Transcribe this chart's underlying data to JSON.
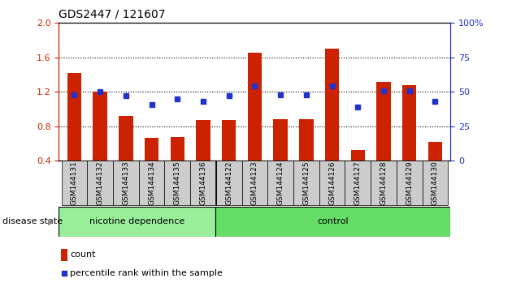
{
  "title": "GDS2447 / 121607",
  "samples": [
    "GSM144131",
    "GSM144132",
    "GSM144133",
    "GSM144134",
    "GSM144135",
    "GSM144136",
    "GSM144122",
    "GSM144123",
    "GSM144124",
    "GSM144125",
    "GSM144126",
    "GSM144127",
    "GSM144128",
    "GSM144129",
    "GSM144130"
  ],
  "bar_values": [
    1.42,
    1.2,
    0.92,
    0.67,
    0.68,
    0.87,
    0.87,
    1.65,
    0.88,
    0.88,
    1.7,
    0.52,
    1.32,
    1.28,
    0.62
  ],
  "dot_pct": [
    48,
    50,
    47,
    41,
    45,
    43,
    47,
    54,
    48,
    48,
    54,
    39,
    51,
    51,
    43
  ],
  "bar_color": "#cc2200",
  "dot_color": "#2233cc",
  "ylim_left": [
    0.4,
    2.0
  ],
  "ylim_right": [
    0,
    100
  ],
  "yticks_left": [
    0.4,
    0.8,
    1.2,
    1.6,
    2.0
  ],
  "yticks_right": [
    0,
    25,
    50,
    75,
    100
  ],
  "group1_label": "nicotine dependence",
  "group2_label": "control",
  "group1_count": 6,
  "group2_count": 9,
  "legend_count_label": "count",
  "legend_pct_label": "percentile rank within the sample",
  "disease_state_label": "disease state",
  "group1_color": "#99ee99",
  "group2_color": "#66dd66",
  "tick_box_color": "#cccccc",
  "tick_label_color_left": "#cc2200",
  "tick_label_color_right": "#2233cc",
  "grid_dotted_vals": [
    0.8,
    1.2,
    1.6
  ],
  "separator_after": 5
}
